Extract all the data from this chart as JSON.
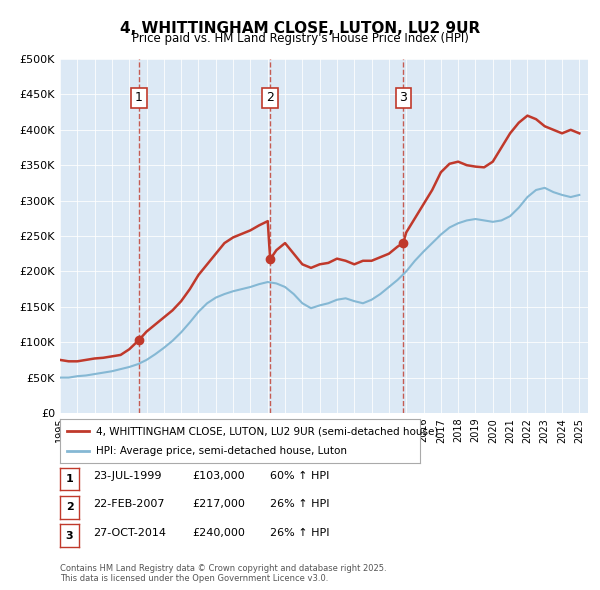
{
  "title": "4, WHITTINGHAM CLOSE, LUTON, LU2 9UR",
  "subtitle": "Price paid vs. HM Land Registry's House Price Index (HPI)",
  "red_line_label": "4, WHITTINGHAM CLOSE, LUTON, LU2 9UR (semi-detached house)",
  "blue_line_label": "HPI: Average price, semi-detached house, Luton",
  "footnote": "Contains HM Land Registry data © Crown copyright and database right 2025.\nThis data is licensed under the Open Government Licence v3.0.",
  "ylim": [
    0,
    500000
  ],
  "yticks": [
    0,
    50000,
    100000,
    150000,
    200000,
    250000,
    300000,
    350000,
    400000,
    450000,
    500000
  ],
  "ytick_labels": [
    "£0",
    "£50K",
    "£100K",
    "£150K",
    "£200K",
    "£250K",
    "£300K",
    "£350K",
    "£400K",
    "£450K",
    "£500K"
  ],
  "xlim_start": 1995.0,
  "xlim_end": 2025.5,
  "red_color": "#c0392b",
  "blue_color": "#85b8d4",
  "background_color": "#dce9f5",
  "plot_bg_color": "#dce9f5",
  "sale_dates": [
    1999.556,
    2007.139,
    2014.826
  ],
  "sale_prices": [
    103000,
    217000,
    240000
  ],
  "sale_labels": [
    "1",
    "2",
    "3"
  ],
  "vline_dates": [
    1999.556,
    2007.139,
    2014.826
  ],
  "table_data": [
    [
      "1",
      "23-JUL-1999",
      "£103,000",
      "60% ↑ HPI"
    ],
    [
      "2",
      "22-FEB-2007",
      "£217,000",
      "26% ↑ HPI"
    ],
    [
      "3",
      "27-OCT-2014",
      "£240,000",
      "26% ↑ HPI"
    ]
  ],
  "red_x": [
    1995.0,
    1995.5,
    1996.0,
    1996.5,
    1997.0,
    1997.5,
    1998.0,
    1998.5,
    1999.0,
    1999.556,
    2000.0,
    2000.5,
    2001.0,
    2001.5,
    2002.0,
    2002.5,
    2003.0,
    2003.5,
    2004.0,
    2004.5,
    2005.0,
    2005.5,
    2006.0,
    2006.5,
    2007.0,
    2007.139,
    2007.5,
    2008.0,
    2008.5,
    2009.0,
    2009.5,
    2010.0,
    2010.5,
    2011.0,
    2011.5,
    2012.0,
    2012.5,
    2013.0,
    2013.5,
    2014.0,
    2014.5,
    2014.826,
    2015.0,
    2015.5,
    2016.0,
    2016.5,
    2017.0,
    2017.5,
    2018.0,
    2018.5,
    2019.0,
    2019.5,
    2020.0,
    2020.5,
    2021.0,
    2021.5,
    2022.0,
    2022.5,
    2023.0,
    2023.5,
    2024.0,
    2024.5,
    2025.0
  ],
  "red_y": [
    75000,
    73000,
    73000,
    75000,
    77000,
    78000,
    80000,
    82000,
    90000,
    103000,
    115000,
    125000,
    135000,
    145000,
    158000,
    175000,
    195000,
    210000,
    225000,
    240000,
    248000,
    253000,
    258000,
    265000,
    271000,
    217000,
    230000,
    240000,
    225000,
    210000,
    205000,
    210000,
    212000,
    218000,
    215000,
    210000,
    215000,
    215000,
    220000,
    225000,
    235000,
    240000,
    255000,
    275000,
    295000,
    315000,
    340000,
    352000,
    355000,
    350000,
    348000,
    347000,
    355000,
    375000,
    395000,
    410000,
    420000,
    415000,
    405000,
    400000,
    395000,
    400000,
    395000
  ],
  "blue_x": [
    1995.0,
    1995.5,
    1996.0,
    1996.5,
    1997.0,
    1997.5,
    1998.0,
    1998.5,
    1999.0,
    1999.5,
    2000.0,
    2000.5,
    2001.0,
    2001.5,
    2002.0,
    2002.5,
    2003.0,
    2003.5,
    2004.0,
    2004.5,
    2005.0,
    2005.5,
    2006.0,
    2006.5,
    2007.0,
    2007.5,
    2008.0,
    2008.5,
    2009.0,
    2009.5,
    2010.0,
    2010.5,
    2011.0,
    2011.5,
    2012.0,
    2012.5,
    2013.0,
    2013.5,
    2014.0,
    2014.5,
    2015.0,
    2015.5,
    2016.0,
    2016.5,
    2017.0,
    2017.5,
    2018.0,
    2018.5,
    2019.0,
    2019.5,
    2020.0,
    2020.5,
    2021.0,
    2021.5,
    2022.0,
    2022.5,
    2023.0,
    2023.5,
    2024.0,
    2024.5,
    2025.0
  ],
  "blue_y": [
    50000,
    50000,
    52000,
    53000,
    55000,
    57000,
    59000,
    62000,
    65000,
    69000,
    75000,
    83000,
    92000,
    102000,
    114000,
    128000,
    143000,
    155000,
    163000,
    168000,
    172000,
    175000,
    178000,
    182000,
    185000,
    183000,
    178000,
    168000,
    155000,
    148000,
    152000,
    155000,
    160000,
    162000,
    158000,
    155000,
    160000,
    168000,
    178000,
    188000,
    200000,
    215000,
    228000,
    240000,
    252000,
    262000,
    268000,
    272000,
    274000,
    272000,
    270000,
    272000,
    278000,
    290000,
    305000,
    315000,
    318000,
    312000,
    308000,
    305000,
    308000
  ]
}
